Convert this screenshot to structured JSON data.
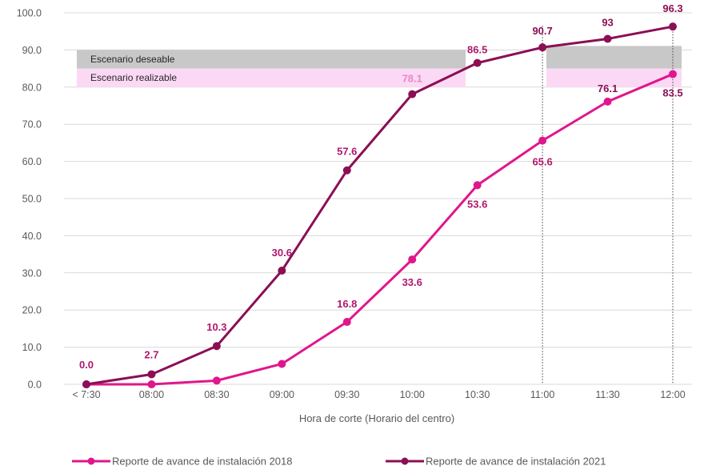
{
  "chart_data": {
    "type": "line",
    "xlabel": "Hora de corte (Horario del centro)",
    "categories": [
      "< 7:30",
      "08:00",
      "08:30",
      "09:00",
      "09:30",
      "10:00",
      "10:30",
      "11:00",
      "11:30",
      "12:00"
    ],
    "ylim": [
      0,
      100
    ],
    "yticks": [
      "0.0",
      "10.0",
      "20.0",
      "30.0",
      "40.0",
      "50.0",
      "60.0",
      "70.0",
      "80.0",
      "90.0",
      "100.0"
    ],
    "grid": true,
    "legend_position": "bottom",
    "series": [
      {
        "name": "Reporte de avance de instalación 2018",
        "color": "#e0168c",
        "values": [
          0.0,
          0.0,
          1.0,
          5.5,
          16.8,
          33.6,
          53.6,
          65.6,
          76.1,
          83.5
        ],
        "labels": [
          "",
          "",
          "",
          "",
          "16.8",
          "33.6",
          "53.6",
          "65.6",
          "76.1",
          "83.5"
        ]
      },
      {
        "name": "Reporte de avance de instalación 2021",
        "color": "#8b0f55",
        "values": [
          0.0,
          2.7,
          10.3,
          30.6,
          57.6,
          78.1,
          86.5,
          90.7,
          93.0,
          96.3
        ],
        "labels": [
          "0.0",
          "2.7",
          "10.3",
          "30.6",
          "57.6",
          "78.1",
          "86.5",
          "90.7",
          "93",
          "96.3"
        ]
      }
    ],
    "bands": [
      {
        "label": "Escenario deseable",
        "from": 85,
        "to": 90,
        "color": "#c8c8c8"
      },
      {
        "label": "Escenario realizable",
        "from": 80,
        "to": 85,
        "color": "#fbd9f5"
      }
    ],
    "reference_lines": [
      "11:00",
      "12:00"
    ]
  }
}
